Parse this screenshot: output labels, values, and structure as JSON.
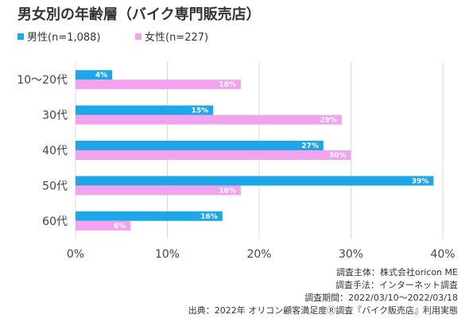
{
  "chart_data": {
    "type": "bar",
    "orientation": "horizontal",
    "title": "男女別の年齢層（バイク専門販売店）",
    "categories": [
      "10～20代",
      "30代",
      "40代",
      "50代",
      "60代"
    ],
    "series": [
      {
        "name": "男性(n=1,088)",
        "values": [
          4,
          15,
          27,
          39,
          16
        ],
        "labels": [
          "4%",
          "15%",
          "27%",
          "39%",
          "16%"
        ],
        "color": "#1ea7e8"
      },
      {
        "name": "女性(n=227)",
        "values": [
          18,
          29,
          30,
          18,
          6
        ],
        "labels": [
          "18%",
          "29%",
          "30%",
          "18%",
          "6%"
        ],
        "color": "#f2a3f0"
      }
    ],
    "xlim": [
      0,
      40
    ],
    "xticks": [
      0,
      10,
      20,
      30,
      40
    ],
    "xtick_labels": [
      "0%",
      "10%",
      "20%",
      "30%",
      "40%"
    ],
    "grid": true,
    "legend_position": "top-left",
    "notes": [
      "調査主体：株式会社oricon ME",
      "調査手法：インターネット調査",
      "調査期間：2022/03/10～2022/03/18",
      "出典：2022年 オリコン顧客満足度Ⓡ調査『バイク販売店』利用実態"
    ]
  }
}
